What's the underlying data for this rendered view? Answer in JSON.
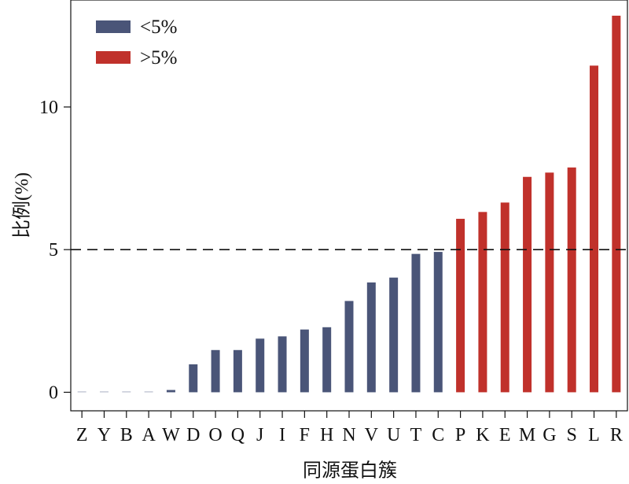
{
  "chart_data": {
    "type": "bar",
    "categories": [
      "Z",
      "Y",
      "B",
      "A",
      "W",
      "D",
      "O",
      "Q",
      "J",
      "I",
      "F",
      "H",
      "N",
      "V",
      "U",
      "T",
      "C",
      "P",
      "K",
      "E",
      "M",
      "G",
      "S",
      "L",
      "R"
    ],
    "values": [
      0,
      0,
      0,
      0,
      0.08,
      0.98,
      1.48,
      1.48,
      1.88,
      1.96,
      2.2,
      2.28,
      3.2,
      3.85,
      4.02,
      4.85,
      4.92,
      6.08,
      6.32,
      6.65,
      7.55,
      7.7,
      7.88,
      11.45,
      13.2
    ],
    "ylabel": "比例(%)",
    "xlabel": "同源蛋白簇",
    "ylim": [
      -0.65,
      13.75
    ],
    "yticks": [
      0,
      5,
      10
    ],
    "threshold": 5,
    "legend": {
      "placement": "top-left",
      "items": [
        {
          "label": "<5%",
          "color": "#4a5578"
        },
        {
          "label": ">5%",
          "color": "#c0312b"
        }
      ]
    },
    "colors": {
      "low": "#4a5578",
      "high": "#c0312b",
      "zero": "#a9afc2"
    }
  }
}
